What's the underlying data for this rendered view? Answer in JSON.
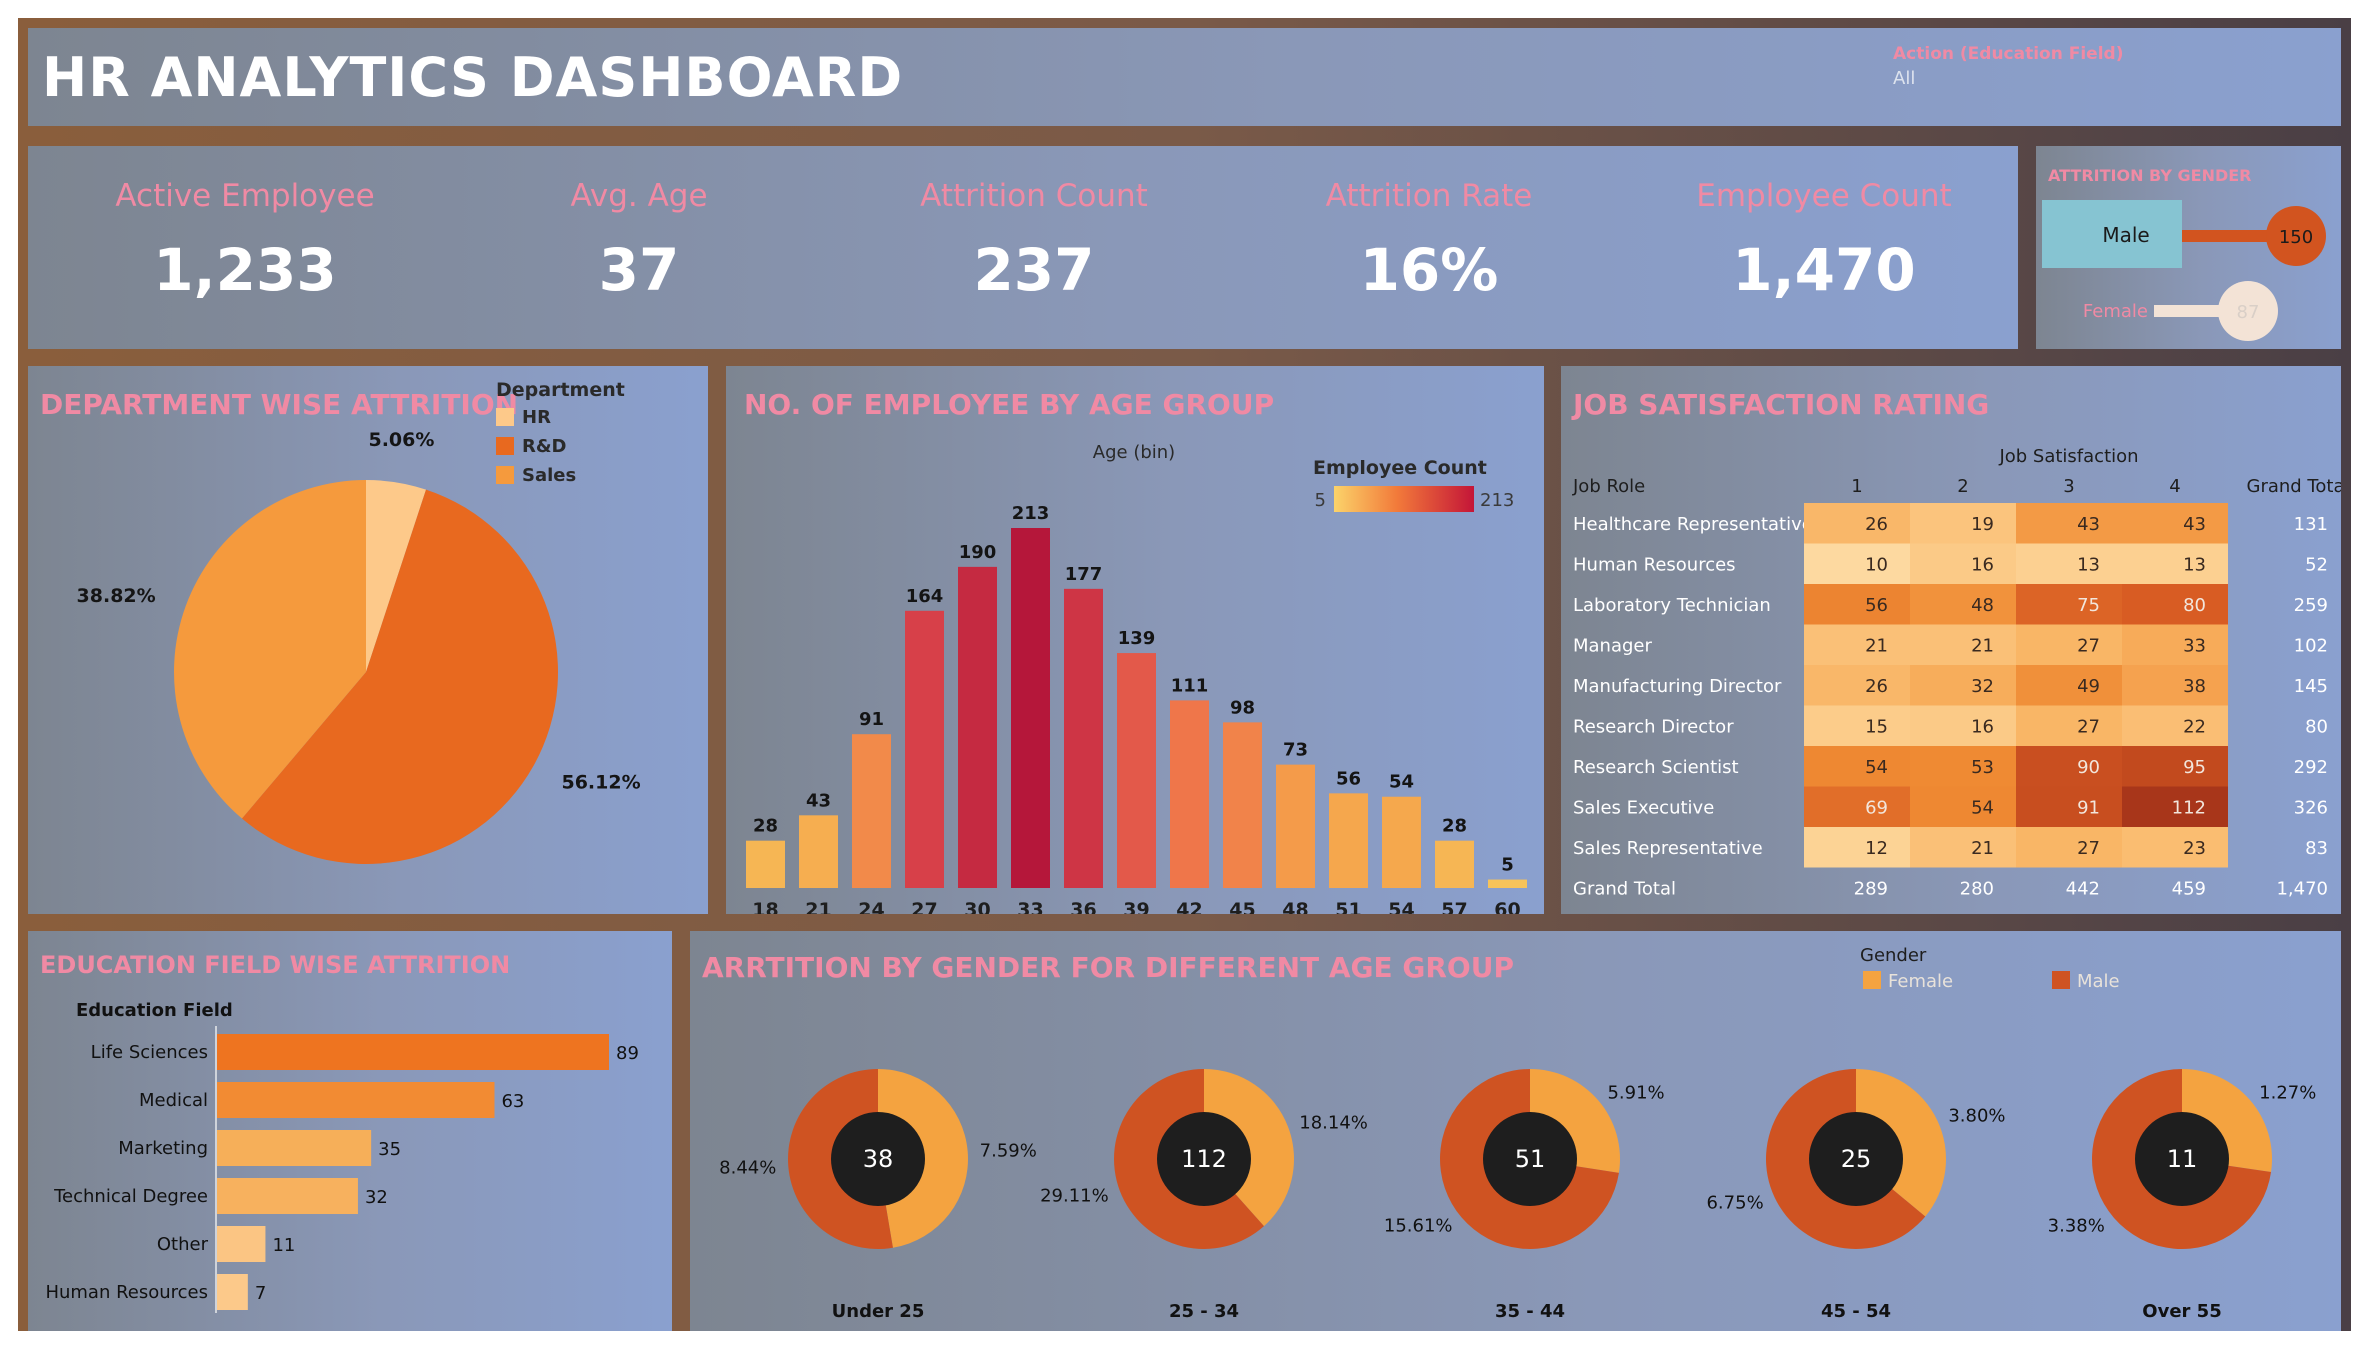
{
  "header": {
    "title": "HR ANALYTICS DASHBOARD",
    "filter_label": "Action (Education Field)",
    "filter_value": "All"
  },
  "kpis": [
    {
      "label": "Active Employee",
      "value": "1,233"
    },
    {
      "label": "Avg. Age",
      "value": "37"
    },
    {
      "label": "Attrition Count",
      "value": "237"
    },
    {
      "label": "Attrition Rate",
      "value": "16%"
    },
    {
      "label": "Employee Count",
      "value": "1,470"
    }
  ],
  "colors": {
    "title_pink": "#f08aa4",
    "hr": "#fdc98a",
    "rnd": "#e8691f",
    "sales": "#f59a3d",
    "female": "#f4a340",
    "male": "#cf5322",
    "donut_center": "#1e1e1e",
    "male_bar": "#86c4d2",
    "male_dot": "#d2541f",
    "female_dot": "#f3e3d6"
  },
  "chart_data": [
    {
      "id": "attrition_by_gender",
      "type": "bar",
      "title": "ATTRITION BY GENDER",
      "categories": [
        "Male",
        "Female"
      ],
      "values": [
        150,
        87
      ]
    },
    {
      "id": "department_attrition",
      "type": "pie",
      "title": "DEPARTMENT WISE ATTRITION",
      "legend_title": "Department",
      "legend_position": "top-right",
      "categories": [
        "HR",
        "R&D",
        "Sales"
      ],
      "values": [
        5.06,
        56.12,
        38.82
      ],
      "labels": [
        "5.06%",
        "56.12%",
        "38.82%"
      ]
    },
    {
      "id": "age_group",
      "type": "bar",
      "title": "NO. OF EMPLOYEE BY AGE GROUP",
      "xlabel": "Age (bin)",
      "legend_title": "Employee Count",
      "color_range": [
        5,
        213
      ],
      "categories": [
        "18",
        "21",
        "24",
        "27",
        "30",
        "33",
        "36",
        "39",
        "42",
        "45",
        "48",
        "51",
        "54",
        "57",
        "60"
      ],
      "values": [
        28,
        43,
        91,
        164,
        190,
        213,
        177,
        139,
        111,
        98,
        73,
        56,
        54,
        28,
        5
      ]
    },
    {
      "id": "job_satisfaction",
      "type": "heatmap",
      "title": "JOB SATISFACTION RATING",
      "column_group_label": "Job Satisfaction",
      "row_header": "Job Role",
      "columns": [
        "1",
        "2",
        "3",
        "4"
      ],
      "total_label": "Grand Total",
      "rows": [
        {
          "role": "Healthcare Representative",
          "values": [
            26,
            19,
            43,
            43
          ],
          "total": "131"
        },
        {
          "role": "Human Resources",
          "values": [
            10,
            16,
            13,
            13
          ],
          "total": "52"
        },
        {
          "role": "Laboratory Technician",
          "values": [
            56,
            48,
            75,
            80
          ],
          "total": "259"
        },
        {
          "role": "Manager",
          "values": [
            21,
            21,
            27,
            33
          ],
          "total": "102"
        },
        {
          "role": "Manufacturing Director",
          "values": [
            26,
            32,
            49,
            38
          ],
          "total": "145"
        },
        {
          "role": "Research Director",
          "values": [
            15,
            16,
            27,
            22
          ],
          "total": "80"
        },
        {
          "role": "Research Scientist",
          "values": [
            54,
            53,
            90,
            95
          ],
          "total": "292"
        },
        {
          "role": "Sales Executive",
          "values": [
            69,
            54,
            91,
            112
          ],
          "total": "326"
        },
        {
          "role": "Sales Representative",
          "values": [
            12,
            21,
            27,
            23
          ],
          "total": "83"
        }
      ],
      "column_totals": [
        "289",
        "280",
        "442",
        "459"
      ],
      "grand_total": "1,470"
    },
    {
      "id": "education_field",
      "type": "bar",
      "title": "EDUCATION FIELD WISE ATTRITION",
      "ylabel": "Education Field",
      "categories": [
        "Life Sciences",
        "Medical",
        "Marketing",
        "Technical Degree",
        "Other",
        "Human Resources"
      ],
      "values": [
        89,
        63,
        35,
        32,
        11,
        7
      ]
    },
    {
      "id": "gender_age_donuts",
      "type": "pie",
      "title": "ARRTITION BY GENDER FOR DIFFERENT AGE GROUP",
      "legend_title": "Gender",
      "legend": [
        "Female",
        "Male"
      ],
      "groups": [
        {
          "name": "Under 25",
          "total": "38",
          "female": 7.59,
          "male": 8.44,
          "female_label": "7.59%",
          "male_label": "8.44%"
        },
        {
          "name": "25 - 34",
          "total": "112",
          "female": 18.14,
          "male": 29.11,
          "female_label": "18.14%",
          "male_label": "29.11%"
        },
        {
          "name": "35 - 44",
          "total": "51",
          "female": 5.91,
          "male": 15.61,
          "female_label": "5.91%",
          "male_label": "15.61%"
        },
        {
          "name": "45 - 54",
          "total": "25",
          "female": 3.8,
          "male": 6.75,
          "female_label": "3.80%",
          "male_label": "6.75%"
        },
        {
          "name": "Over 55",
          "total": "11",
          "female": 1.27,
          "male": 3.38,
          "female_label": "1.27%",
          "male_label": "3.38%"
        }
      ]
    }
  ]
}
